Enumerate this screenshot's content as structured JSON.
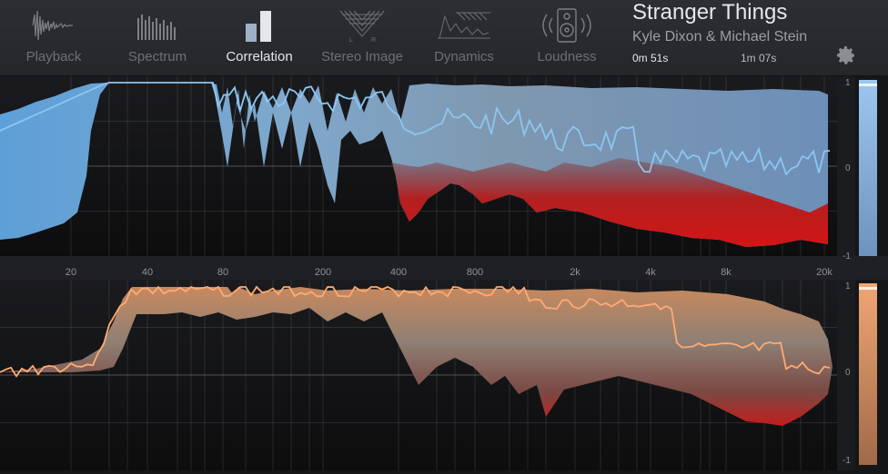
{
  "tabs": [
    {
      "label": "Playback",
      "icon": "waveform-icon",
      "active": false
    },
    {
      "label": "Spectrum",
      "icon": "spectrum-bars-icon",
      "active": false
    },
    {
      "label": "Correlation",
      "icon": "correlation-bars-icon",
      "active": true
    },
    {
      "label": "Stereo Image",
      "icon": "stereo-image-icon",
      "active": false
    },
    {
      "label": "Dynamics",
      "icon": "dynamics-icon",
      "active": false
    },
    {
      "label": "Loudness",
      "icon": "speaker-icon",
      "active": false
    }
  ],
  "stereo_image_icon_letters": {
    "left": "L",
    "right": "R"
  },
  "track": {
    "title": "Stranger Things",
    "artist": "Kyle Dixon & Michael Stein",
    "time_current": "0m 51s",
    "time_total": "1m 07s"
  },
  "settings_icon": "gear-icon",
  "frequency_labels": [
    "20",
    "40",
    "80",
    "200",
    "400",
    "800",
    "2k",
    "4k",
    "8k",
    "20k"
  ],
  "top_scale": {
    "top": "1",
    "mid": "0",
    "bottom": "-1"
  },
  "bottom_scale": {
    "top": "1",
    "mid": "0",
    "bottom": "-1"
  },
  "colors": {
    "blue_line": "#8cc6f2",
    "orange_line": "#ffab72",
    "red": "#cc1616",
    "grey_fill": "#8a8e94",
    "blue_meter": "#8ab9ea",
    "orange_meter": "#e89a6a"
  }
}
